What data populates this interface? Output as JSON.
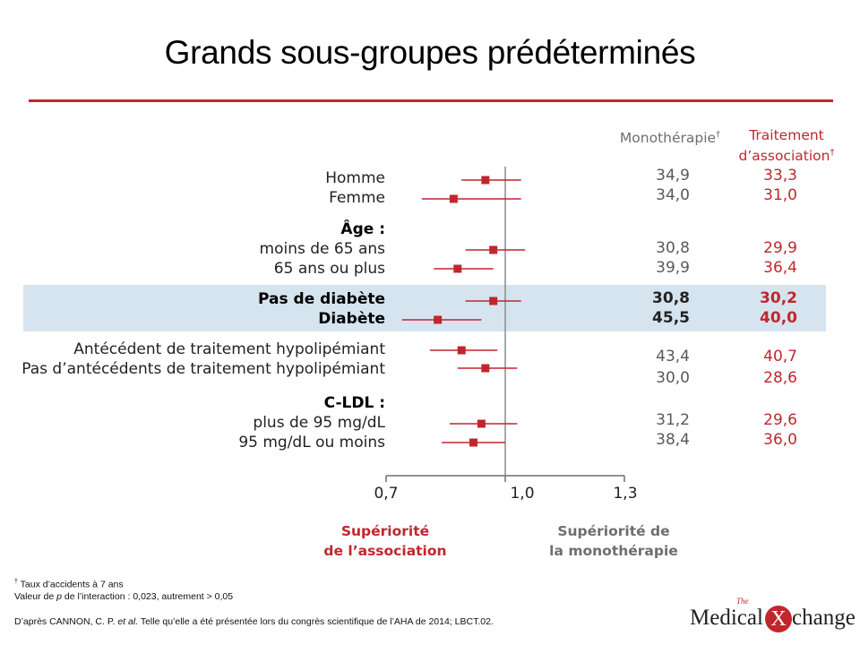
{
  "title": "Grands sous-groupes prédéterminés",
  "headers": {
    "mono": "Monothérapie",
    "mono_mark": "†",
    "combo_line1": "Traitement",
    "combo_line2": "d’association",
    "combo_mark": "†"
  },
  "chart_data": {
    "type": "forest",
    "reference_line": 1.0,
    "xlim": [
      0.7,
      1.3
    ],
    "x_ticks": [
      "0,7",
      "1,0",
      "1,3"
    ],
    "favors_left": [
      "Supériorité",
      "de l’association"
    ],
    "favors_right": [
      "Supériorité de",
      "la monothérapie"
    ],
    "groups": [
      {
        "label": "Homme",
        "point": 0.95,
        "ci": [
          0.89,
          1.04
        ],
        "mono": "34,9",
        "combo": "33,3"
      },
      {
        "label": "Femme",
        "point": 0.87,
        "ci": [
          0.79,
          1.04
        ],
        "mono": "34,0",
        "combo": "31,0"
      },
      {
        "label": "Âge :",
        "heading": true
      },
      {
        "label": "moins de 65 ans",
        "point": 0.97,
        "ci": [
          0.9,
          1.05
        ],
        "mono": "30,8",
        "combo": "29,9"
      },
      {
        "label": "65 ans ou plus",
        "point": 0.88,
        "ci": [
          0.82,
          0.97
        ],
        "mono": "39,9",
        "combo": "36,4"
      },
      {
        "label": "Pas de diabète",
        "point": 0.97,
        "ci": [
          0.9,
          1.04
        ],
        "mono": "30,8",
        "combo": "30,2",
        "bold": true
      },
      {
        "label": "Diabète",
        "point": 0.83,
        "ci": [
          0.74,
          0.94
        ],
        "mono": "45,5",
        "combo": "40,0",
        "bold": true
      },
      {
        "label": "Antécédent de traitement hypolipémiant",
        "point": 0.89,
        "ci": [
          0.81,
          0.98
        ],
        "mono": "43,4",
        "combo": "40,7"
      },
      {
        "label": "Pas d’antécédents de traitement hypolipémiant",
        "point": 0.95,
        "ci": [
          0.88,
          1.03
        ],
        "mono": "30,0",
        "combo": "28,6"
      },
      {
        "label": "C-LDL :",
        "heading": true
      },
      {
        "label": "plus de 95 mg/dL",
        "point": 0.94,
        "ci": [
          0.86,
          1.03
        ],
        "mono": "31,2",
        "combo": "29,6"
      },
      {
        "label": "95 mg/dL ou moins",
        "point": 0.92,
        "ci": [
          0.84,
          1.0
        ],
        "mono": "38,4",
        "combo": "36,0"
      }
    ]
  },
  "footnotes": {
    "line1_mark": "†",
    "line1": "Taux d’accidents à 7 ans",
    "line2_pre": "Valeur de ",
    "line2_p": "p",
    "line2_post": " de l’interaction : 0,023, autrement > 0,05"
  },
  "source": {
    "pre": "D’après CANNON, C. P. ",
    "etal": "et al.",
    "post": " Telle qu’elle a été présentée lors du congrès scientifique de l’AHA de 2014; LBCT.02."
  },
  "logo": {
    "the": "The",
    "medical": "Medical",
    "x": "X",
    "change": "change"
  },
  "colors": {
    "accent": "#c0272d",
    "band": "#d6e4ef",
    "grey": "#6d6e71"
  }
}
